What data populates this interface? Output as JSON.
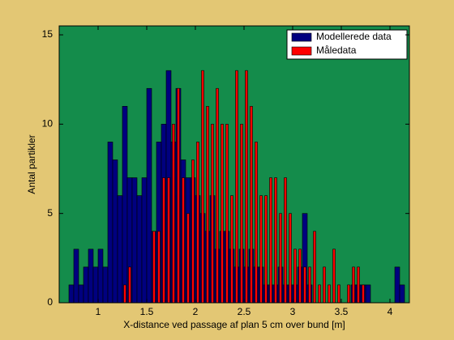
{
  "chart_data": {
    "type": "bar",
    "xlabel": "X-distance ved passage af plan 5 cm over bund [m]",
    "ylabel": "Antal partikler",
    "x": [
      0.725,
      0.775,
      0.825,
      0.875,
      0.925,
      0.975,
      1.025,
      1.075,
      1.125,
      1.175,
      1.225,
      1.275,
      1.325,
      1.375,
      1.425,
      1.475,
      1.525,
      1.575,
      1.625,
      1.675,
      1.725,
      1.775,
      1.825,
      1.875,
      1.925,
      1.975,
      2.025,
      2.075,
      2.125,
      2.175,
      2.225,
      2.275,
      2.325,
      2.375,
      2.425,
      2.475,
      2.525,
      2.575,
      2.625,
      2.675,
      2.725,
      2.775,
      2.825,
      2.875,
      2.925,
      2.975,
      3.025,
      3.075,
      3.125,
      3.175,
      3.225,
      3.275,
      3.325,
      3.375,
      3.425,
      3.475,
      3.525,
      3.575,
      3.625,
      3.675,
      3.725,
      3.775,
      3.825,
      3.875,
      3.925,
      3.975,
      4.025,
      4.075,
      4.125
    ],
    "series": [
      {
        "name": "Modellerede data",
        "color": "#00007f",
        "values": [
          1,
          3,
          1,
          2,
          3,
          2,
          3,
          2,
          9,
          8,
          6,
          11,
          7,
          7,
          6,
          7,
          12,
          4,
          9,
          10,
          13,
          9,
          12,
          8,
          7,
          7,
          6,
          5,
          4,
          6,
          3,
          4,
          4,
          3,
          2,
          3,
          2,
          3,
          2,
          2,
          1,
          1,
          1,
          2,
          1,
          1,
          1,
          2,
          5,
          1,
          0,
          0,
          0,
          0,
          0,
          0,
          0,
          0,
          1,
          1,
          1,
          1,
          0,
          0,
          0,
          0,
          0,
          2,
          1
        ]
      },
      {
        "name": "Måledata",
        "color": "#ff0000",
        "values": [
          0,
          0,
          0,
          0,
          0,
          0,
          0,
          0,
          0,
          0,
          0,
          1,
          2,
          0,
          0,
          0,
          0,
          4,
          4,
          7,
          7,
          10,
          12,
          7,
          5,
          8,
          9,
          13,
          11,
          10,
          12,
          10,
          10,
          6,
          13,
          10,
          13,
          11,
          9,
          6,
          6,
          7,
          7,
          5,
          7,
          5,
          3,
          3,
          2,
          2,
          4,
          1,
          2,
          1,
          3,
          1,
          0,
          1,
          2,
          2,
          1,
          0,
          0,
          0,
          0,
          0,
          0,
          0,
          0
        ]
      }
    ],
    "xlim": [
      0.6,
      4.2
    ],
    "ylim": [
      0,
      15.5
    ],
    "xticks": [
      1,
      1.5,
      2,
      2.5,
      3,
      3.5,
      4
    ],
    "yticks": [
      0,
      5,
      10,
      15
    ],
    "plot_background": "#148c4b",
    "legend": "upper right"
  }
}
